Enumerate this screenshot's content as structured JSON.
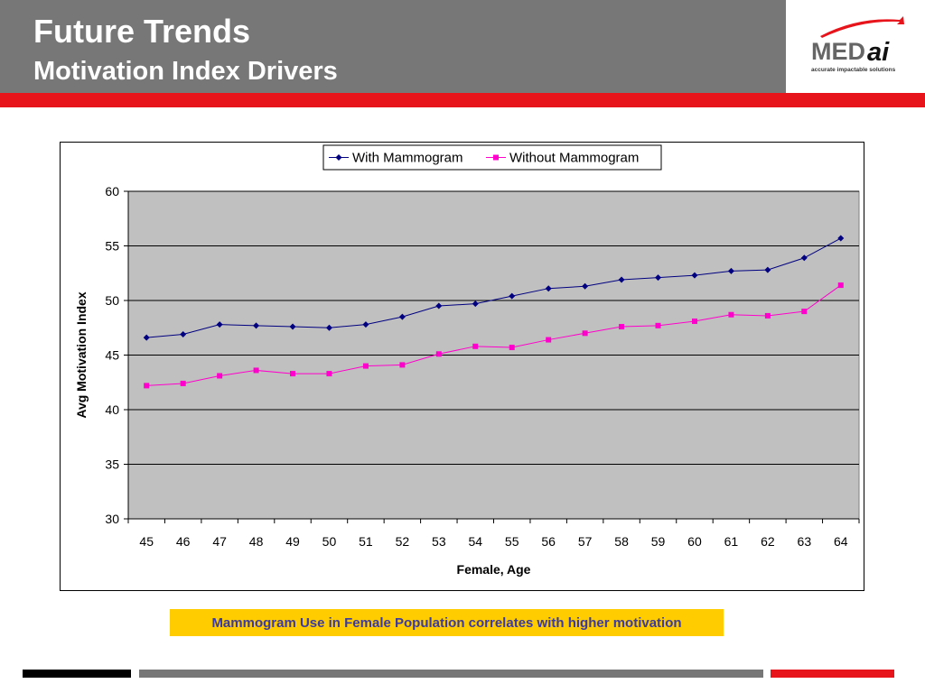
{
  "header": {
    "title": "Future Trends",
    "subtitle": "Motivation Index Drivers"
  },
  "logo": {
    "text_med": "MED",
    "text_ai": "ai",
    "tagline": "accurate impactable solutions"
  },
  "caption": "Mammogram Use in Female Population correlates with higher motivation",
  "colors": {
    "header_bg": "#777777",
    "accent_red": "#e8141b",
    "plot_bg": "#c0c0c0",
    "series_with": "#000080",
    "series_without": "#ff00cc",
    "caption_bg": "#ffcc00",
    "caption_text": "#3a3aa0"
  },
  "chart_data": {
    "type": "line",
    "xlabel": "Female, Age",
    "ylabel": "Avg Motivation Index",
    "ylim": [
      30,
      60
    ],
    "yticks": [
      30,
      35,
      40,
      45,
      50,
      55,
      60
    ],
    "grid": true,
    "legend": "top",
    "categories": [
      "45",
      "46",
      "47",
      "48",
      "49",
      "50",
      "51",
      "52",
      "53",
      "54",
      "55",
      "56",
      "57",
      "58",
      "59",
      "60",
      "61",
      "62",
      "63",
      "64"
    ],
    "series": [
      {
        "name": "With Mammogram",
        "marker": "diamond",
        "values": [
          46.6,
          46.9,
          47.8,
          47.7,
          47.6,
          47.5,
          47.8,
          48.5,
          49.5,
          49.7,
          50.4,
          51.1,
          51.3,
          51.9,
          52.1,
          52.3,
          52.7,
          52.8,
          53.9,
          55.7
        ]
      },
      {
        "name": "Without Mammogram",
        "marker": "square",
        "values": [
          42.2,
          42.4,
          43.1,
          43.6,
          43.3,
          43.3,
          44.0,
          44.1,
          45.1,
          45.8,
          45.7,
          46.4,
          47.0,
          47.6,
          47.7,
          48.1,
          48.7,
          48.6,
          49.0,
          51.4
        ]
      }
    ]
  }
}
